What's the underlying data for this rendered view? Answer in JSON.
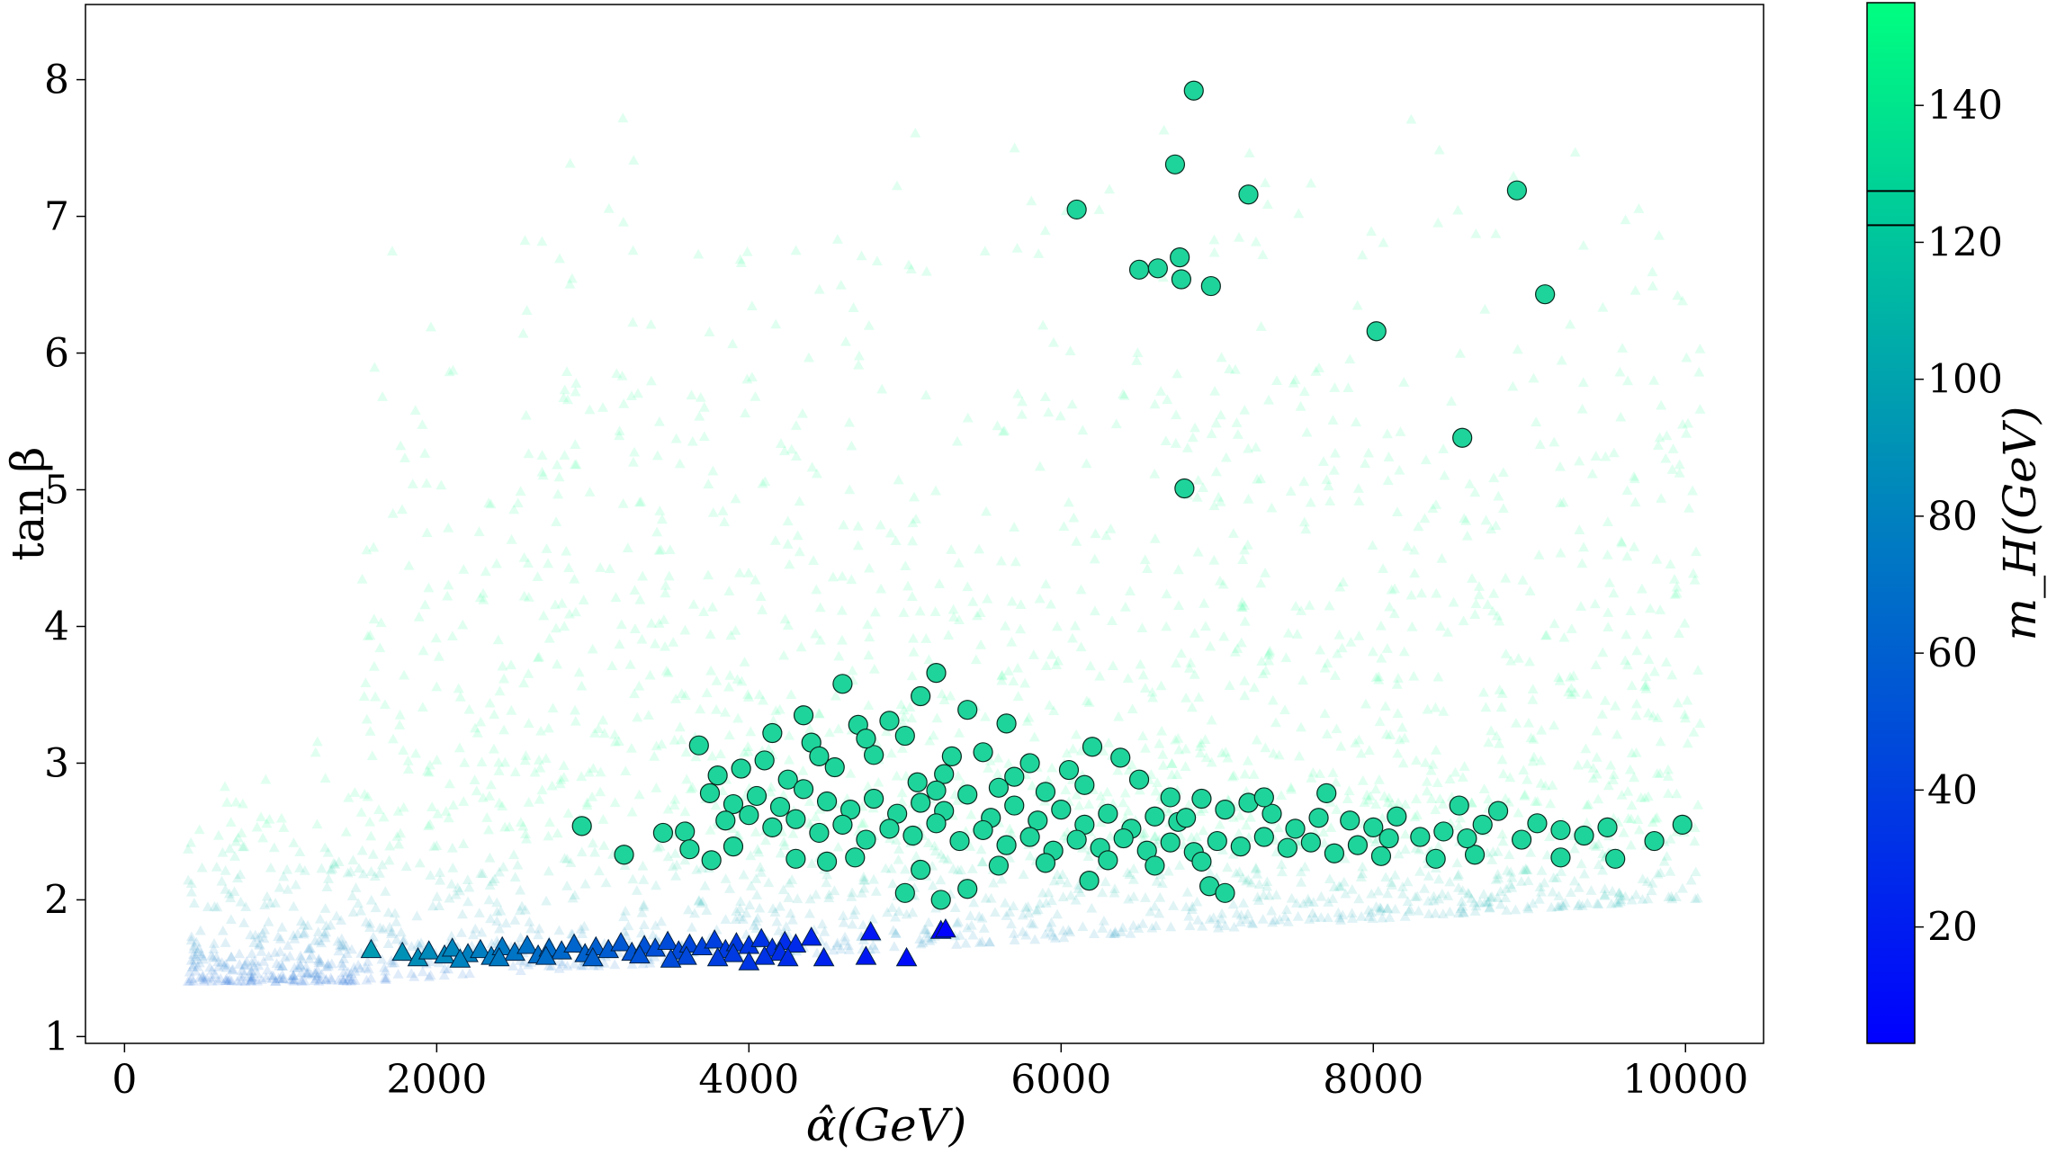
{
  "chart_data": {
    "type": "scatter",
    "xlabel": "α̂(GeV)",
    "ylabel": "tan β",
    "colorbar_label": "m_H(GeV)",
    "xlim": [
      -250,
      10500
    ],
    "ylim": [
      0.95,
      8.55
    ],
    "x_ticks": [
      0,
      2000,
      4000,
      6000,
      8000,
      10000
    ],
    "y_ticks": [
      1,
      2,
      3,
      4,
      5,
      6,
      7,
      8
    ],
    "colorbar": {
      "range": [
        3,
        155
      ],
      "ticks": [
        20,
        40,
        60,
        80,
        100,
        120,
        140
      ],
      "color_low": "#0000ff",
      "color_high": "#00ff80",
      "band_lines": [
        122.5,
        127.5
      ]
    },
    "grid": false,
    "series": [
      {
        "marker": "circle",
        "points": [
          [
            6850,
            7.92
          ],
          [
            6730,
            7.38
          ],
          [
            6100,
            7.05
          ],
          [
            7200,
            7.16
          ],
          [
            8920,
            7.19
          ],
          [
            6500,
            6.61
          ],
          [
            6620,
            6.62
          ],
          [
            6760,
            6.7
          ],
          [
            6770,
            6.54
          ],
          [
            6960,
            6.49
          ],
          [
            9100,
            6.43
          ],
          [
            8020,
            6.16
          ],
          [
            8570,
            5.38
          ],
          [
            6790,
            5.01
          ],
          [
            5200,
            3.66
          ],
          [
            4600,
            3.58
          ],
          [
            5100,
            3.49
          ],
          [
            5400,
            3.39
          ],
          [
            5650,
            3.29
          ],
          [
            4350,
            3.35
          ],
          [
            3680,
            3.13
          ],
          [
            4150,
            3.22
          ],
          [
            4700,
            3.28
          ],
          [
            4900,
            3.31
          ],
          [
            5000,
            3.2
          ],
          [
            5300,
            3.05
          ],
          [
            5500,
            3.08
          ],
          [
            5800,
            3.0
          ],
          [
            6050,
            2.95
          ],
          [
            6200,
            3.12
          ],
          [
            6380,
            3.04
          ],
          [
            3800,
            2.91
          ],
          [
            3950,
            2.96
          ],
          [
            4100,
            3.02
          ],
          [
            4250,
            2.88
          ],
          [
            4400,
            3.15
          ],
          [
            4550,
            2.97
          ],
          [
            4800,
            3.06
          ],
          [
            5080,
            2.86
          ],
          [
            5250,
            2.92
          ],
          [
            5600,
            2.82
          ],
          [
            5900,
            2.79
          ],
          [
            6150,
            2.84
          ],
          [
            6500,
            2.88
          ],
          [
            6700,
            2.75
          ],
          [
            3750,
            2.78
          ],
          [
            3900,
            2.7
          ],
          [
            4050,
            2.76
          ],
          [
            4200,
            2.68
          ],
          [
            4350,
            2.81
          ],
          [
            4500,
            2.72
          ],
          [
            4650,
            2.66
          ],
          [
            4800,
            2.74
          ],
          [
            4950,
            2.63
          ],
          [
            5100,
            2.71
          ],
          [
            5250,
            2.65
          ],
          [
            5400,
            2.77
          ],
          [
            5550,
            2.6
          ],
          [
            5700,
            2.69
          ],
          [
            5850,
            2.58
          ],
          [
            6000,
            2.66
          ],
          [
            6150,
            2.55
          ],
          [
            6300,
            2.63
          ],
          [
            6450,
            2.52
          ],
          [
            6600,
            2.61
          ],
          [
            6750,
            2.57
          ],
          [
            6900,
            2.74
          ],
          [
            7050,
            2.66
          ],
          [
            7200,
            2.71
          ],
          [
            7350,
            2.63
          ],
          [
            7500,
            2.52
          ],
          [
            7650,
            2.6
          ],
          [
            7700,
            2.78
          ],
          [
            7850,
            2.58
          ],
          [
            8000,
            2.53
          ],
          [
            8150,
            2.61
          ],
          [
            8300,
            2.46
          ],
          [
            8450,
            2.5
          ],
          [
            8550,
            2.69
          ],
          [
            8700,
            2.55
          ],
          [
            8800,
            2.65
          ],
          [
            8950,
            2.44
          ],
          [
            9050,
            2.56
          ],
          [
            9200,
            2.51
          ],
          [
            9350,
            2.47
          ],
          [
            9500,
            2.53
          ],
          [
            9800,
            2.43
          ],
          [
            9980,
            2.55
          ],
          [
            3850,
            2.58
          ],
          [
            4000,
            2.62
          ],
          [
            4150,
            2.53
          ],
          [
            4300,
            2.59
          ],
          [
            4450,
            2.49
          ],
          [
            4600,
            2.55
          ],
          [
            4750,
            2.44
          ],
          [
            4900,
            2.52
          ],
          [
            5050,
            2.47
          ],
          [
            5200,
            2.56
          ],
          [
            5350,
            2.43
          ],
          [
            5500,
            2.51
          ],
          [
            5650,
            2.4
          ],
          [
            5800,
            2.46
          ],
          [
            5950,
            2.36
          ],
          [
            6100,
            2.44
          ],
          [
            6250,
            2.38
          ],
          [
            6400,
            2.45
          ],
          [
            6550,
            2.36
          ],
          [
            6700,
            2.42
          ],
          [
            6850,
            2.35
          ],
          [
            7000,
            2.43
          ],
          [
            7150,
            2.39
          ],
          [
            7300,
            2.46
          ],
          [
            7450,
            2.38
          ],
          [
            7600,
            2.42
          ],
          [
            7750,
            2.34
          ],
          [
            7900,
            2.4
          ],
          [
            8050,
            2.32
          ],
          [
            8400,
            2.3
          ],
          [
            8650,
            2.33
          ],
          [
            9200,
            2.31
          ],
          [
            9550,
            2.3
          ],
          [
            2930,
            2.54
          ],
          [
            3200,
            2.33
          ],
          [
            3450,
            2.49
          ],
          [
            3590,
            2.5
          ],
          [
            3620,
            2.37
          ],
          [
            3900,
            2.39
          ],
          [
            3760,
            2.29
          ],
          [
            4300,
            2.3
          ],
          [
            4500,
            2.28
          ],
          [
            4680,
            2.31
          ],
          [
            5000,
            2.05
          ],
          [
            5230,
            2.0
          ],
          [
            5400,
            2.08
          ],
          [
            6180,
            2.14
          ],
          [
            6950,
            2.1
          ],
          [
            7050,
            2.05
          ],
          [
            5100,
            2.22
          ],
          [
            5600,
            2.25
          ],
          [
            5900,
            2.27
          ],
          [
            6300,
            2.29
          ],
          [
            6600,
            2.25
          ],
          [
            6900,
            2.28
          ],
          [
            4450,
            3.05
          ],
          [
            4750,
            3.18
          ],
          [
            5700,
            2.9
          ],
          [
            5200,
            2.8
          ],
          [
            6800,
            2.6
          ],
          [
            7300,
            2.75
          ],
          [
            8100,
            2.45
          ],
          [
            8600,
            2.45
          ]
        ]
      },
      {
        "marker": "triangle",
        "points": [
          [
            1580,
            1.63
          ],
          [
            1780,
            1.61
          ],
          [
            1880,
            1.57
          ],
          [
            1950,
            1.62
          ],
          [
            2050,
            1.59
          ],
          [
            2100,
            1.64
          ],
          [
            2200,
            1.6
          ],
          [
            2280,
            1.63
          ],
          [
            2350,
            1.58
          ],
          [
            2420,
            1.65
          ],
          [
            2500,
            1.61
          ],
          [
            2580,
            1.66
          ],
          [
            2650,
            1.59
          ],
          [
            2720,
            1.64
          ],
          [
            2800,
            1.62
          ],
          [
            2880,
            1.67
          ],
          [
            2950,
            1.6
          ],
          [
            3020,
            1.65
          ],
          [
            3100,
            1.63
          ],
          [
            3180,
            1.68
          ],
          [
            3250,
            1.61
          ],
          [
            3330,
            1.66
          ],
          [
            3400,
            1.64
          ],
          [
            3480,
            1.69
          ],
          [
            3550,
            1.62
          ],
          [
            3620,
            1.67
          ],
          [
            3700,
            1.65
          ],
          [
            3780,
            1.7
          ],
          [
            3850,
            1.63
          ],
          [
            3920,
            1.68
          ],
          [
            4000,
            1.66
          ],
          [
            4080,
            1.71
          ],
          [
            4150,
            1.64
          ],
          [
            4230,
            1.69
          ],
          [
            4300,
            1.67
          ],
          [
            4400,
            1.72
          ],
          [
            2150,
            1.56
          ],
          [
            2400,
            1.57
          ],
          [
            2700,
            1.58
          ],
          [
            3000,
            1.57
          ],
          [
            3300,
            1.59
          ],
          [
            3600,
            1.58
          ],
          [
            3900,
            1.6
          ],
          [
            4200,
            1.61
          ],
          [
            3500,
            1.56
          ],
          [
            3800,
            1.57
          ],
          [
            4100,
            1.58
          ],
          [
            4000,
            1.54
          ],
          [
            4250,
            1.57
          ],
          [
            4480,
            1.57
          ],
          [
            4780,
            1.76
          ],
          [
            4750,
            1.58
          ],
          [
            5010,
            1.57
          ],
          [
            5230,
            1.77
          ],
          [
            5260,
            1.78
          ]
        ]
      }
    ]
  }
}
